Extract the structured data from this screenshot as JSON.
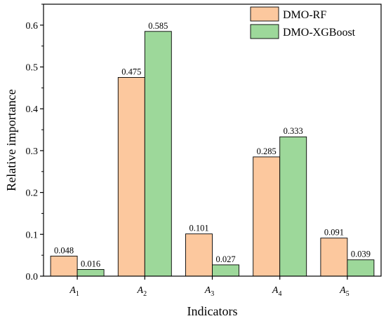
{
  "chart_data": {
    "type": "bar",
    "categories": [
      {
        "base": "A",
        "sub": "1"
      },
      {
        "base": "A",
        "sub": "2"
      },
      {
        "base": "A",
        "sub": "3"
      },
      {
        "base": "A",
        "sub": "4"
      },
      {
        "base": "A",
        "sub": "5"
      }
    ],
    "series": [
      {
        "name": "DMO-RF",
        "color": "#FCC89E",
        "values": [
          0.048,
          0.475,
          0.101,
          0.285,
          0.091
        ],
        "labels": [
          "0.048",
          "0.475",
          "0.101",
          "0.285",
          "0.091"
        ]
      },
      {
        "name": "DMO-XGBoost",
        "color": "#9DD89A",
        "values": [
          0.016,
          0.585,
          0.027,
          0.333,
          0.039
        ],
        "labels": [
          "0.016",
          "0.585",
          "0.027",
          "0.333",
          "0.039"
        ]
      }
    ],
    "xlabel": "Indicators",
    "ylabel": "Relative importance",
    "ylim": [
      0,
      0.65
    ],
    "yticks": [
      0.0,
      0.1,
      0.2,
      0.3,
      0.4,
      0.5,
      0.6
    ],
    "ytick_labels": [
      "0.0",
      "0.1",
      "0.2",
      "0.3",
      "0.4",
      "0.5",
      "0.6"
    ],
    "legend_position": "top-right",
    "grid": false
  }
}
